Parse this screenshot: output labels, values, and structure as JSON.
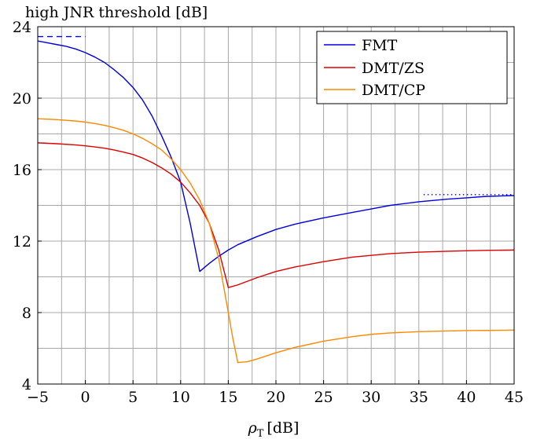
{
  "chart_data": {
    "type": "line",
    "title": "",
    "ylabel": "high JNR threshold [dB]",
    "xlabel_symbol": "ρ",
    "xlabel_subscript": "T",
    "xlabel_unit": "[dB]",
    "xlim": [
      -5,
      45
    ],
    "ylim": [
      4,
      24
    ],
    "x_ticks": [
      -5,
      0,
      5,
      10,
      15,
      20,
      25,
      30,
      35,
      40,
      45
    ],
    "y_ticks": [
      4,
      8,
      12,
      16,
      20,
      24
    ],
    "x_grid_step": 2.5,
    "y_grid_step": 2,
    "grid": true,
    "legend_position": "top-right",
    "series": [
      {
        "name": "FMT",
        "color": "#0000dd",
        "x": [
          -5,
          -4,
          -3,
          -2,
          -1,
          0,
          1,
          2,
          3,
          4,
          5,
          6,
          7,
          8,
          9,
          10,
          11,
          12,
          13,
          14,
          15,
          16,
          18,
          20,
          22,
          25,
          28,
          30,
          32,
          35,
          38,
          40,
          42,
          45
        ],
        "y": [
          23.2,
          23.1,
          23.0,
          22.9,
          22.75,
          22.55,
          22.3,
          22.0,
          21.6,
          21.15,
          20.6,
          19.9,
          19.0,
          17.9,
          16.7,
          15.3,
          13.0,
          10.3,
          10.75,
          11.15,
          11.5,
          11.8,
          12.25,
          12.65,
          12.95,
          13.3,
          13.6,
          13.8,
          14.0,
          14.2,
          14.35,
          14.42,
          14.5,
          14.55
        ]
      },
      {
        "name": "DMT/ZS",
        "color": "#dd0000",
        "x": [
          -5,
          -3,
          -1,
          0,
          1,
          2,
          3,
          4,
          5,
          6,
          7,
          8,
          9,
          10,
          11,
          12,
          13,
          14,
          15,
          16,
          18,
          20,
          22,
          25,
          28,
          30,
          32,
          35,
          38,
          40,
          42,
          45
        ],
        "y": [
          17.5,
          17.45,
          17.38,
          17.33,
          17.27,
          17.2,
          17.1,
          16.98,
          16.85,
          16.65,
          16.4,
          16.1,
          15.75,
          15.3,
          14.7,
          14.0,
          13.0,
          11.5,
          9.4,
          9.55,
          9.95,
          10.3,
          10.55,
          10.85,
          11.1,
          11.2,
          11.3,
          11.38,
          11.43,
          11.46,
          11.48,
          11.5
        ]
      },
      {
        "name": "DMT/CP",
        "color": "#ff8800",
        "x": [
          -5,
          -3,
          -1,
          0,
          1,
          2,
          3,
          4,
          5,
          6,
          7,
          8,
          9,
          10,
          11,
          12,
          13,
          14,
          15,
          15.5,
          16,
          17,
          18,
          20,
          22,
          25,
          28,
          30,
          32,
          35,
          38,
          40,
          42,
          45
        ],
        "y": [
          18.85,
          18.8,
          18.72,
          18.66,
          18.58,
          18.48,
          18.35,
          18.2,
          18.0,
          17.75,
          17.45,
          17.1,
          16.6,
          16.0,
          15.25,
          14.3,
          13.0,
          11.0,
          8.0,
          6.5,
          5.2,
          5.25,
          5.4,
          5.75,
          6.05,
          6.4,
          6.65,
          6.78,
          6.86,
          6.93,
          6.97,
          6.99,
          7.0,
          7.02
        ]
      }
    ],
    "reference_lines": [
      {
        "color": "#0000dd",
        "style": "dashed",
        "x": [
          -5,
          0
        ],
        "y": [
          23.45,
          23.45
        ]
      },
      {
        "color": "#0000dd",
        "style": "dotted",
        "x": [
          35.5,
          45
        ],
        "y": [
          14.6,
          14.6
        ]
      }
    ]
  }
}
